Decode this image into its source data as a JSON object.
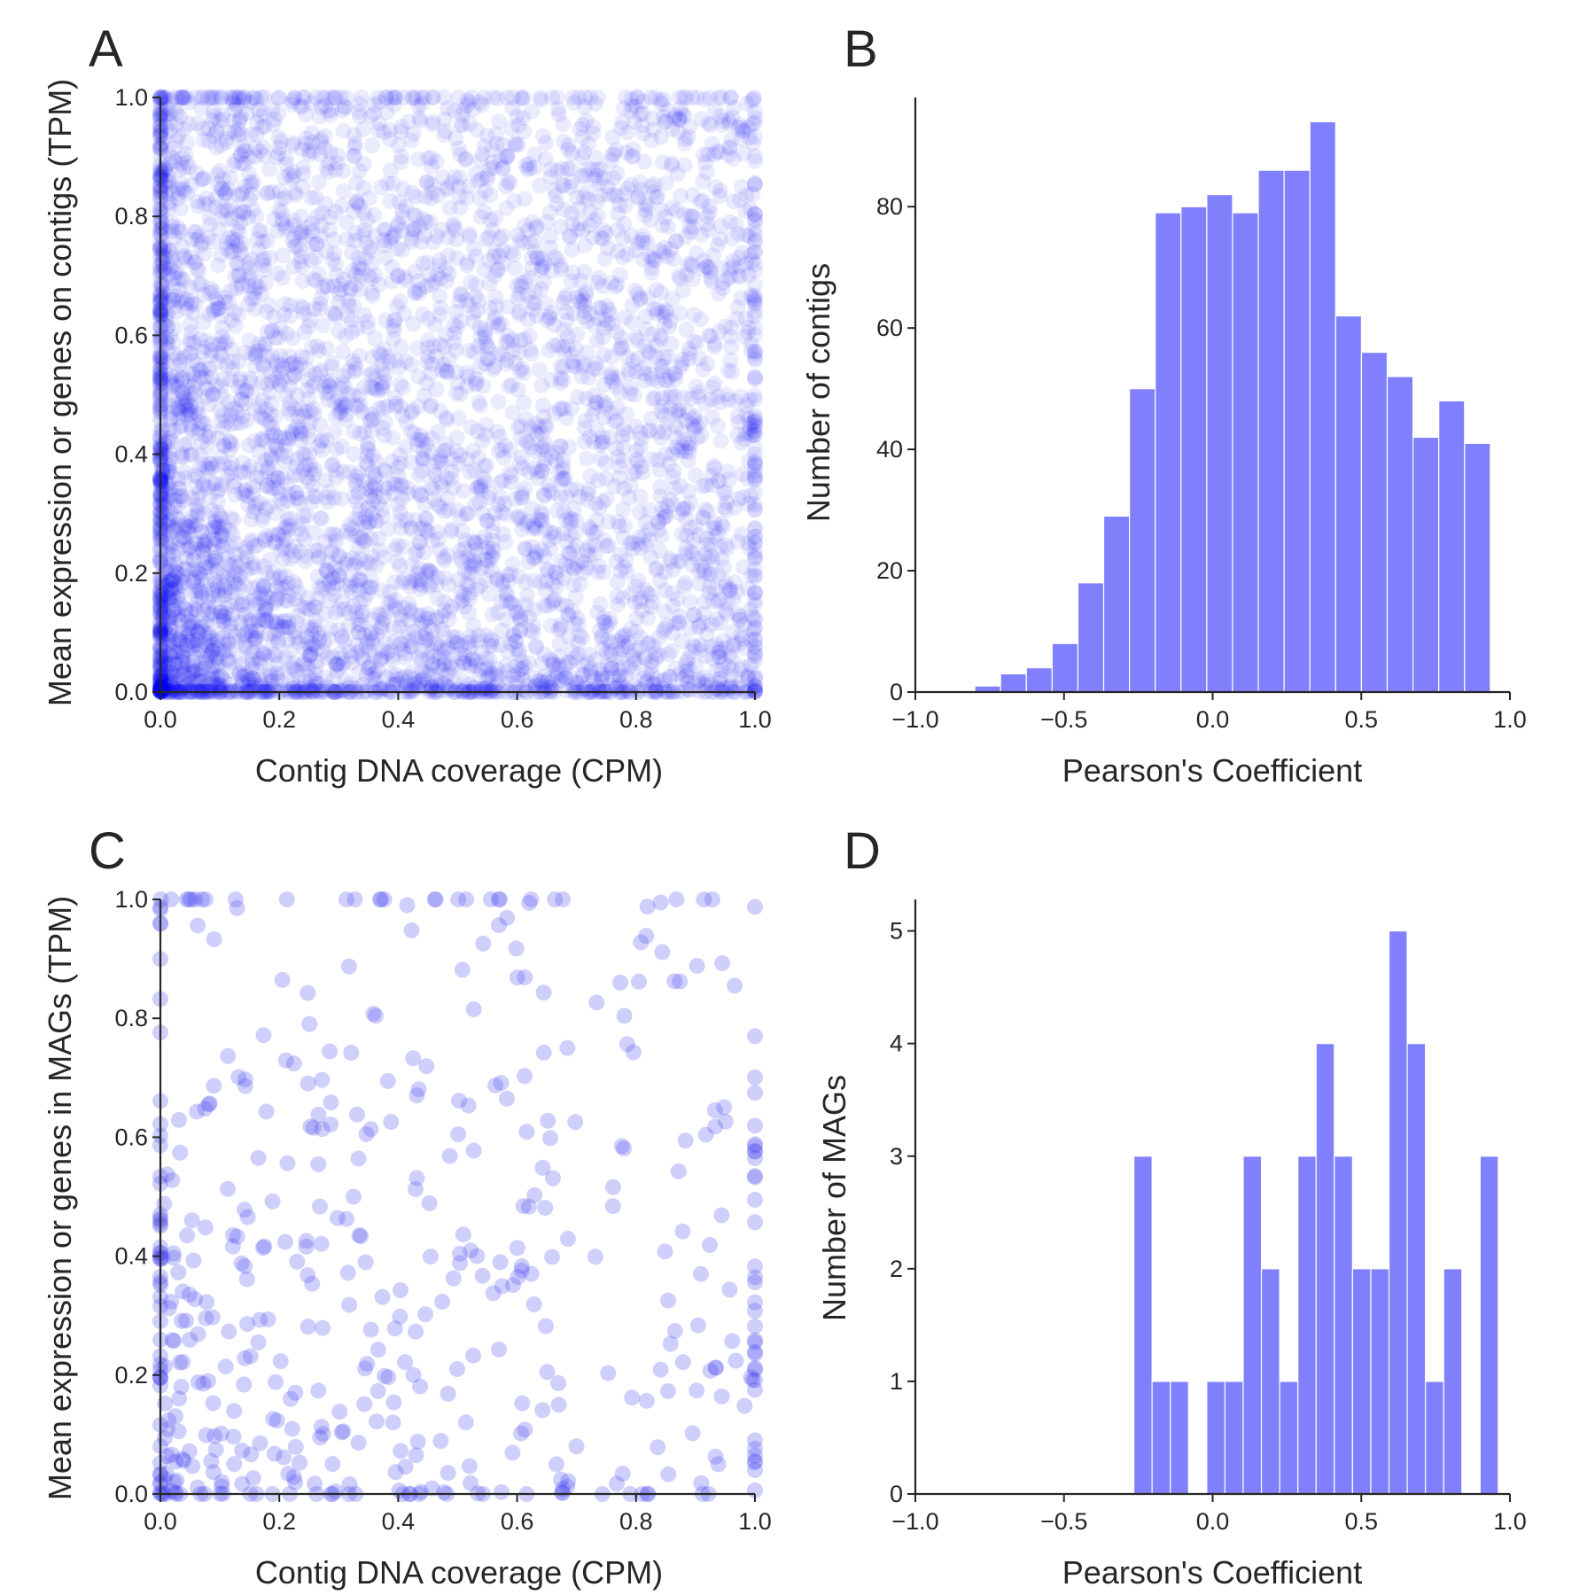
{
  "figure": {
    "background": "#ffffff",
    "text_color": "#262626"
  },
  "chart_data": [
    {
      "id": "A",
      "letter": "A",
      "type": "scatter",
      "xlabel": "Contig DNA coverage (CPM)",
      "ylabel": "Mean expression or genes on contigs (TPM)",
      "xlim": [
        0.0,
        1.0
      ],
      "ylim": [
        0.0,
        1.0
      ],
      "xticks": [
        0.0,
        0.2,
        0.4,
        0.6,
        0.8,
        1.0
      ],
      "xticklabels": [
        "0.0",
        "0.2",
        "0.4",
        "0.6",
        "0.8",
        "1.0"
      ],
      "yticks": [
        0.0,
        0.2,
        0.4,
        0.6,
        0.8,
        1.0
      ],
      "yticklabels": [
        "0.0",
        "0.2",
        "0.4",
        "0.6",
        "0.8",
        "1.0"
      ],
      "color": "#0000ee",
      "point_opacity": 0.08,
      "n_points": 5000,
      "density": "dense near origin, decreasing toward high x and high y; points clipped at 0 and 1 form dense edge bands",
      "grid": false
    },
    {
      "id": "B",
      "letter": "B",
      "type": "bar",
      "subtype": "histogram",
      "xlabel": "Pearson's Coefficient",
      "ylabel": "Number of contigs",
      "xlim": [
        -1.0,
        1.0
      ],
      "ylim": [
        0,
        98
      ],
      "xticks": [
        -1.0,
        -0.5,
        0.0,
        0.5,
        1.0
      ],
      "xticklabels": [
        "−1.0",
        "−0.5",
        "0.0",
        "0.5",
        "1.0"
      ],
      "yticks": [
        0,
        20,
        40,
        60,
        80
      ],
      "yticklabels": [
        "0",
        "20",
        "40",
        "60",
        "80"
      ],
      "color": "#8080fc",
      "bin_start": -0.8,
      "bin_width": 0.0867,
      "values": [
        1,
        3,
        4,
        8,
        18,
        29,
        50,
        79,
        80,
        82,
        79,
        86,
        86,
        94,
        62,
        56,
        52,
        42,
        48,
        41
      ],
      "grid": false
    },
    {
      "id": "C",
      "letter": "C",
      "type": "scatter",
      "xlabel": "Contig DNA coverage (CPM)",
      "ylabel": "Mean expression or genes in MAGs (TPM)",
      "xlim": [
        0.0,
        1.0
      ],
      "ylim": [
        0.0,
        1.0
      ],
      "xticks": [
        0.0,
        0.2,
        0.4,
        0.6,
        0.8,
        1.0
      ],
      "xticklabels": [
        "0.0",
        "0.2",
        "0.4",
        "0.6",
        "0.8",
        "1.0"
      ],
      "yticks": [
        0.0,
        0.2,
        0.4,
        0.6,
        0.8,
        1.0
      ],
      "yticklabels": [
        "0.0",
        "0.2",
        "0.4",
        "0.6",
        "0.8",
        "1.0"
      ],
      "color": "#4040f0",
      "point_opacity": 0.25,
      "n_points": 500,
      "density": "sparse; denser near origin; clipped points along edges",
      "grid": false
    },
    {
      "id": "D",
      "letter": "D",
      "type": "bar",
      "subtype": "histogram",
      "xlabel": "Pearson's Coefficient",
      "ylabel": "Number of MAGs",
      "xlim": [
        -1.0,
        1.0
      ],
      "ylim": [
        0,
        5.28
      ],
      "xticks": [
        -1.0,
        -0.5,
        0.0,
        0.5,
        1.0
      ],
      "xticklabels": [
        "−1.0",
        "−0.5",
        "0.0",
        "0.5",
        "1.0"
      ],
      "yticks": [
        0,
        1,
        2,
        3,
        4,
        5
      ],
      "yticklabels": [
        "0",
        "1",
        "2",
        "3",
        "4",
        "5"
      ],
      "color": "#8080fc",
      "bin_start": -0.265,
      "bin_width": 0.0613,
      "values": [
        3,
        1,
        1,
        0,
        1,
        1,
        3,
        2,
        1,
        3,
        4,
        3,
        2,
        2,
        5,
        4,
        1,
        2,
        0,
        3
      ],
      "grid": false
    }
  ]
}
